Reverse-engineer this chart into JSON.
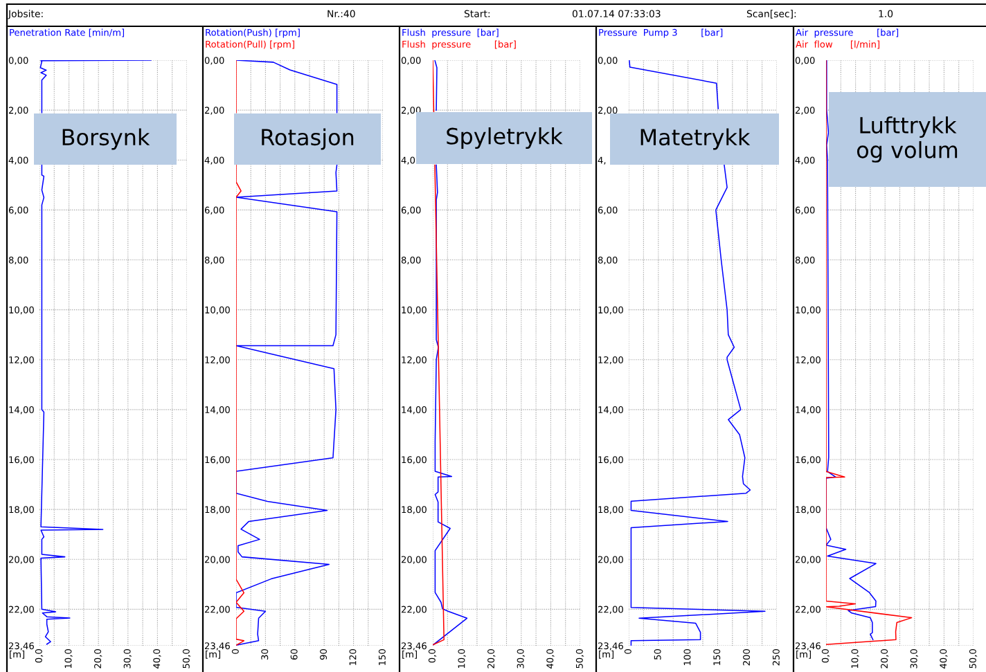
{
  "chart_data": [
    {
      "type": "line",
      "ylabel": "[m]",
      "grid": true,
      "legend": "top left",
      "annotations": [
        "Jobsite:",
        "Nr.:40",
        "Start:",
        "01.07.14 07:33:03",
        "Scan[sec]:",
        "1.0",
        "Borsynk"
      ],
      "series": [
        {
          "name": "Penetration Rate [min/m]",
          "color": "#0000ff",
          "x": [
            37.8,
            0.5,
            0.8,
            0.3,
            2.3,
            0.5,
            2.3,
            0.8,
            0.8,
            null,
            0.8,
            0.8,
            1.5,
            0.8,
            1.5,
            0.8,
            0.8,
            1.5,
            0.5,
            21.5,
            0.5,
            1.5,
            0.8,
            0.8,
            8.6,
            0.5,
            0.8,
            5.5,
            1.0,
            2.5,
            10.3,
            2.5,
            2.5,
            3.0,
            2.0,
            3.8,
            2.5
          ],
          "values": [
            0,
            0.02,
            0.05,
            0.3,
            0.4,
            0.5,
            0.6,
            0.8,
            2.1,
            null,
            4.2,
            4.6,
            4.65,
            5.2,
            5.5,
            5.8,
            14.0,
            14.1,
            18.7,
            18.8,
            18.83,
            19.1,
            19.2,
            19.8,
            19.9,
            19.95,
            22.0,
            22.1,
            22.15,
            22.3,
            22.35,
            22.4,
            22.6,
            22.9,
            23.1,
            23.3,
            23.4
          ]
        }
      ],
      "xlim": [
        0,
        50
      ],
      "xticks": [
        {
          "value": 0,
          "label": "0,0"
        },
        {
          "value": 5,
          "label": null
        },
        {
          "value": 10,
          "label": "10,0"
        },
        {
          "value": 15,
          "label": null
        },
        {
          "value": 20,
          "label": "20,0"
        },
        {
          "value": 25,
          "label": null
        },
        {
          "value": 30,
          "label": "30,0"
        },
        {
          "value": 35,
          "label": null
        },
        {
          "value": 40,
          "label": "40,0"
        },
        {
          "value": 45,
          "label": null
        },
        {
          "value": 50,
          "label": "50,0"
        }
      ],
      "ylim": [
        23.46,
        0
      ],
      "yticks": [
        {
          "value": 0,
          "label": "0,00"
        },
        {
          "value": 2,
          "label": "2,00"
        },
        {
          "value": 4,
          "label": "4,00"
        },
        {
          "value": 6,
          "label": "6,00"
        },
        {
          "value": 8,
          "label": "8,00"
        },
        {
          "value": 10,
          "label": "10,00"
        },
        {
          "value": 12,
          "label": "12,00"
        },
        {
          "value": 14,
          "label": "14,00"
        },
        {
          "value": 16,
          "label": "16,00"
        },
        {
          "value": 18,
          "label": "18,00"
        },
        {
          "value": 20,
          "label": "20,00"
        },
        {
          "value": 22,
          "label": "22,00"
        },
        {
          "value": 23.46,
          "label": "23,46"
        }
      ]
    },
    {
      "type": "line",
      "ylabel": "[m]",
      "grid": true,
      "legend": "top left",
      "annotations": [
        "Rotasjon"
      ],
      "series": [
        {
          "name": "Rotation(Push) [rpm]",
          "color": "#0000ff",
          "x": [
            0,
            38,
            55,
            103,
            103,
            null,
            103,
            102,
            103,
            0,
            103,
            102,
            99,
            0,
            100,
            102,
            99,
            0,
            0,
            32,
            93,
            13,
            5,
            24,
            2,
            2,
            6,
            95,
            36,
            0,
            0,
            30,
            23,
            22,
            23,
            0
          ],
          "values": [
            0,
            0.08,
            0.39,
            0.97,
            2.1,
            null,
            4.2,
            4.5,
            5.24,
            5.49,
            6.07,
            11.0,
            11.44,
            11.44,
            12.36,
            14.0,
            15.93,
            16.47,
            17.35,
            17.68,
            18.04,
            18.48,
            18.79,
            19.2,
            19.45,
            19.7,
            19.9,
            20.2,
            20.78,
            21.34,
            21.92,
            22.08,
            22.36,
            23.0,
            23.26,
            23.44
          ]
        },
        {
          "name": "Rotation(Pull) [rpm]",
          "color": "#ff0000",
          "x": [
            0,
            0,
            null,
            0,
            0,
            5,
            0,
            0,
            8,
            0,
            8,
            0,
            0,
            8,
            0
          ],
          "values": [
            0,
            2.1,
            null,
            4.2,
            4.88,
            5.24,
            5.49,
            20.8,
            21.34,
            21.72,
            22.08,
            22.38,
            23.2,
            23.26,
            23.44
          ]
        }
      ],
      "xlim": [
        0,
        150
      ],
      "xticks": [
        0,
        {
          "value": 15,
          "label": null
        },
        30,
        {
          "value": 45,
          "label": null
        },
        60,
        {
          "value": 75,
          "label": null
        },
        90,
        {
          "value": 105,
          "label": null
        },
        120,
        {
          "value": 135,
          "label": null
        },
        150
      ],
      "ylim": [
        23.46,
        0
      ],
      "yticks": [
        {
          "value": 0,
          "label": "0,00"
        },
        {
          "value": 2,
          "label": "2,00"
        },
        {
          "value": 4,
          "label": "4,00"
        },
        {
          "value": 6,
          "label": "6,00"
        },
        {
          "value": 8,
          "label": "8,00"
        },
        {
          "value": 10,
          "label": "10,00"
        },
        {
          "value": 12,
          "label": "12,00"
        },
        {
          "value": 14,
          "label": "14,00"
        },
        {
          "value": 16,
          "label": "16,00"
        },
        {
          "value": 18,
          "label": "18,00"
        },
        {
          "value": 20,
          "label": "20,00"
        },
        {
          "value": 22,
          "label": "22,00"
        },
        {
          "value": 23.46,
          "label": "23,46"
        }
      ]
    },
    {
      "type": "line",
      "ylabel": "[m]",
      "grid": true,
      "legend": "top left",
      "annotations": [
        "Spyletrykk"
      ],
      "series": [
        {
          "name": "Flush  pressure  [bar]",
          "color": "#0000ff",
          "x": [
            0.7,
            1.4,
            1.2,
            null,
            1.2,
            1.6,
            1.2,
            1.2,
            1.9,
            1.2,
            0.8,
            0.8,
            6.4,
            1.8,
            1.8,
            0.8,
            1.8,
            1.8,
            5.9,
            0.8,
            0.8,
            2.8,
            3.3,
            5.2,
            11.6,
            0.2
          ],
          "values": [
            0,
            0.3,
            2.0,
            null,
            4.2,
            5.3,
            5.6,
            11.2,
            11.5,
            12.0,
            15.3,
            16.47,
            16.68,
            16.7,
            17.3,
            17.4,
            17.7,
            18.5,
            18.76,
            19.65,
            21.33,
            21.72,
            21.98,
            22.08,
            22.36,
            23.42
          ]
        },
        {
          "name": "Flush  pressure        [bar]",
          "color": "#ff0000",
          "x": [
            0,
            0.35,
            null,
            0.7,
            3.8,
            0.2
          ],
          "values": [
            0,
            2.1,
            null,
            4.2,
            23.22,
            23.42
          ]
        }
      ],
      "xlim": [
        0,
        50
      ],
      "xticks": [
        {
          "value": 0,
          "label": "0,0"
        },
        {
          "value": 5,
          "label": null
        },
        {
          "value": 10,
          "label": "10,0"
        },
        {
          "value": 15,
          "label": null
        },
        {
          "value": 20,
          "label": "20,0"
        },
        {
          "value": 25,
          "label": null
        },
        {
          "value": 30,
          "label": "30,0"
        },
        {
          "value": 35,
          "label": null
        },
        {
          "value": 40,
          "label": "40,0"
        },
        {
          "value": 45,
          "label": null
        },
        {
          "value": 50,
          "label": "50,0"
        }
      ],
      "ylim": [
        23.46,
        0
      ],
      "yticks": [
        {
          "value": 0,
          "label": "0,00"
        },
        {
          "value": 2,
          "label": "2,00"
        },
        {
          "value": 4,
          "label": "4,0"
        },
        {
          "value": 6,
          "label": "6,00"
        },
        {
          "value": 8,
          "label": "8,00"
        },
        {
          "value": 10,
          "label": "10,00"
        },
        {
          "value": 12,
          "label": "12,00"
        },
        {
          "value": 14,
          "label": "14,00"
        },
        {
          "value": 16,
          "label": "16,00"
        },
        {
          "value": 18,
          "label": "18,00"
        },
        {
          "value": 20,
          "label": "20,00"
        },
        {
          "value": 22,
          "label": "22,00"
        },
        {
          "value": 23.46,
          "label": "23,46"
        }
      ]
    },
    {
      "type": "line",
      "ylabel": "[m]",
      "grid": true,
      "legend": "top left",
      "annotations": [
        "Matetrykk"
      ],
      "series": [
        {
          "name": "Pressure  Pump 3        [bar]",
          "color": "#0000ff",
          "x": [
            1,
            2,
            148,
            151,
            null,
            161,
            166,
            147,
            156,
            166,
            168,
            178,
            166,
            166,
            189,
            168,
            187,
            196,
            192,
            193.5,
            205,
            198,
            4,
            4,
            167,
            4,
            4,
            230,
            17.5,
            113,
            121,
            121,
            4,
            4
          ],
          "values": [
            0,
            0.28,
            0.92,
            1.94,
            null,
            4.17,
            5.1,
            6.0,
            8.0,
            10.0,
            11.0,
            11.5,
            11.9,
            12.0,
            14.0,
            14.4,
            15.0,
            15.93,
            16.68,
            16.97,
            17.22,
            17.35,
            17.67,
            18.04,
            18.48,
            18.73,
            21.93,
            22.08,
            22.36,
            22.56,
            22.92,
            23.22,
            23.26,
            23.44
          ]
        }
      ],
      "xlim": [
        0,
        250
      ],
      "xticks": [
        0,
        {
          "value": 25,
          "label": null
        },
        50,
        {
          "value": 75,
          "label": null
        },
        100,
        {
          "value": 125,
          "label": null
        },
        150,
        {
          "value": 175,
          "label": null
        },
        200,
        {
          "value": 225,
          "label": null
        },
        250
      ],
      "ylim": [
        23.46,
        0
      ],
      "yticks": [
        {
          "value": 0,
          "label": "0,00"
        },
        {
          "value": 2,
          "label": "2,00"
        },
        {
          "value": 4,
          "label": "4,"
        },
        {
          "value": 6,
          "label": "6,00"
        },
        {
          "value": 8,
          "label": "8,00"
        },
        {
          "value": 10,
          "label": "10,00"
        },
        {
          "value": 12,
          "label": "12,00"
        },
        {
          "value": 14,
          "label": "14,00"
        },
        {
          "value": 16,
          "label": "16,00"
        },
        {
          "value": 18,
          "label": "18,00"
        },
        {
          "value": 20,
          "label": "20,00"
        },
        {
          "value": 22,
          "label": "22,00"
        },
        {
          "value": 23.46,
          "label": "23,46"
        }
      ]
    },
    {
      "type": "line",
      "ylabel": "[m]",
      "grid": true,
      "legend": "top left",
      "annotations": [
        "Lufttrykk\nog volum"
      ],
      "series": [
        {
          "name": "Air  pressure        [bar]",
          "color": "#0000ff",
          "x": [
            0.2,
            0.2,
            0.5,
            0.8,
            0.2,
            0.5,
            0.9,
            0.5,
            3.2,
            0,
            0,
            1.6,
            0,
            6.7,
            0.5,
            16.9,
            8,
            14.6,
            16.9,
            16.8,
            7.5,
            8.7,
            15,
            15.7,
            15.7,
            15,
            15.9
          ],
          "values": [
            0,
            2.0,
            2.4,
            2.9,
            3.4,
            4.0,
            15.9,
            16.48,
            16.7,
            16.75,
            18.73,
            19.2,
            19.43,
            19.6,
            19.87,
            20.17,
            20.77,
            21.32,
            21.67,
            21.89,
            22.05,
            22.15,
            22.34,
            22.53,
            22.94,
            23.0,
            23.22
          ]
        },
        {
          "name": "Air  flow      [l/min]",
          "color": "#ff0000",
          "x": [
            0,
            0,
            6.3,
            0,
            0,
            9.9,
            4.4,
            0,
            29,
            24,
            23.6,
            23.7,
            0
          ],
          "values": [
            0,
            16.48,
            16.7,
            16.72,
            21.67,
            21.78,
            21.88,
            21.9,
            22.34,
            22.53,
            22.9,
            23.22,
            23.41
          ]
        }
      ],
      "xlim": [
        0,
        50
      ],
      "xticks": [
        {
          "value": 0,
          "label": "0,0"
        },
        {
          "value": 5,
          "label": null
        },
        {
          "value": 10,
          "label": "10,0"
        },
        {
          "value": 15,
          "label": null
        },
        {
          "value": 20,
          "label": "20,0"
        },
        {
          "value": 25,
          "label": null
        },
        {
          "value": 30,
          "label": "30,0"
        },
        {
          "value": 35,
          "label": null
        },
        {
          "value": 40,
          "label": "40,0"
        },
        {
          "value": 45,
          "label": null
        },
        {
          "value": 50,
          "label": "50,0"
        }
      ],
      "ylim": [
        23.46,
        0
      ],
      "yticks": [
        {
          "value": 0,
          "label": "0,00"
        },
        {
          "value": 2,
          "label": "2,00"
        },
        {
          "value": 4,
          "label": "4,00"
        },
        {
          "value": 6,
          "label": "6,00"
        },
        {
          "value": 8,
          "label": "8,00"
        },
        {
          "value": 10,
          "label": "10,00"
        },
        {
          "value": 12,
          "label": "12,00"
        },
        {
          "value": 14,
          "label": "14,00"
        },
        {
          "value": 16,
          "label": "16,00"
        },
        {
          "value": 18,
          "label": "18,00"
        },
        {
          "value": 20,
          "label": "20,00"
        },
        {
          "value": 22,
          "label": "22,00"
        },
        {
          "value": 23.46,
          "label": "23,46"
        }
      ]
    }
  ]
}
